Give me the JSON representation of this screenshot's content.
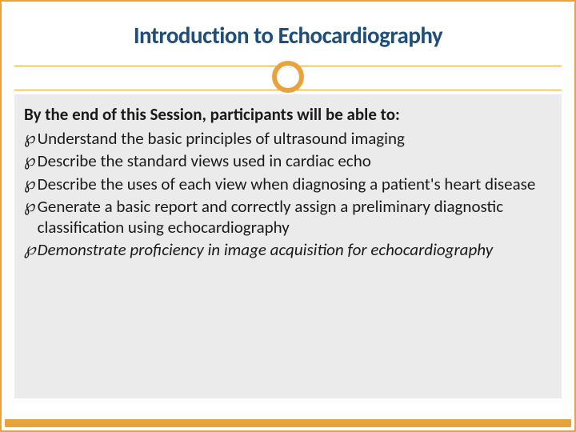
{
  "title": "Introduction to Echocardiography",
  "intro": "By the end of this Session, participants will be able to:",
  "bullets": [
    {
      "text": "Understand the basic principles of ultrasound imaging",
      "italic": false
    },
    {
      "text": "Describe the standard views used in cardiac echo",
      "italic": false
    },
    {
      "text": "Describe the uses of each view when diagnosing a patient's heart disease",
      "italic": false
    },
    {
      "text": "Generate a basic report and correctly assign a preliminary diagnostic classification using echocardiography",
      "italic": false
    },
    {
      "text": "Demonstrate proficiency in image acquisition for echocardiography",
      "italic": true
    }
  ],
  "style": {
    "title_fontsize": 29,
    "intro_fontsize": 21,
    "bullet_fontsize": 21,
    "title_color": "#1f4e79",
    "accent_color": "#e8a33d",
    "content_bg": "#ebebeb",
    "text_color": "#1a1a1a"
  }
}
